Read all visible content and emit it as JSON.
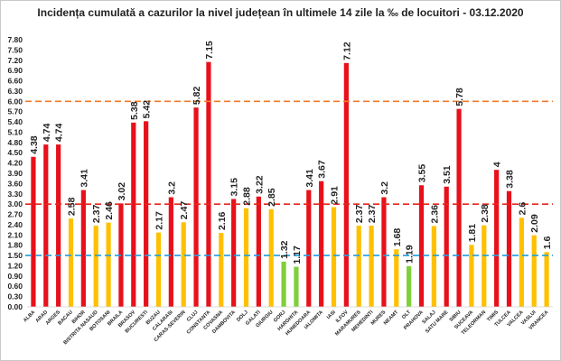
{
  "chart_data": {
    "type": "bar",
    "title": "Incidența cumulată a cazurilor la nivel județean în ultimele 14 zile la ‰ de locuitori - 03.12.2020",
    "xlabel": "",
    "ylabel": "",
    "ylim": [
      0,
      7.8
    ],
    "yticks": [
      "0.00",
      "0.30",
      "0.60",
      "0.90",
      "1.20",
      "1.50",
      "1.80",
      "2.10",
      "2.40",
      "2.70",
      "3.00",
      "3.30",
      "3.60",
      "3.90",
      "4.20",
      "4.50",
      "4.80",
      "5.10",
      "5.40",
      "5.70",
      "6.00",
      "6.30",
      "6.60",
      "6.90",
      "7.20",
      "7.50",
      "7.80"
    ],
    "grid": false,
    "legend": "none",
    "categories": [
      "ALBA",
      "ARAD",
      "ARGES",
      "BACAU",
      "BIHOR",
      "BISTRITA NASAUD",
      "BOTOSANI",
      "BRAILA",
      "BRASOV",
      "BUCURESTI",
      "BUZAU",
      "CALARASI",
      "CARAS-SEVERIN",
      "CLUJ",
      "CONSTANTA",
      "COVASNA",
      "DAMBOVITA",
      "DOLJ",
      "GALATI",
      "GIURGIU",
      "GORJ",
      "HARGHITA",
      "HUNEDOARA",
      "IALOMITA",
      "IASI",
      "ILFOV",
      "MARAMURES",
      "MEHEDINTI",
      "MURES",
      "NEAMT",
      "OLT",
      "PRAHOVA",
      "SALAJ",
      "SATU MARE",
      "SIBIU",
      "SUCEAVA",
      "TELEORMAN",
      "TIMIS",
      "TULCEA",
      "VALCEA",
      "VASLUI",
      "VRANCEA"
    ],
    "values": [
      4.38,
      4.74,
      4.74,
      2.58,
      3.41,
      2.37,
      2.46,
      3.02,
      5.38,
      5.42,
      2.17,
      3.2,
      2.47,
      5.82,
      7.15,
      2.16,
      3.15,
      2.88,
      3.22,
      2.85,
      1.32,
      1.17,
      3.41,
      3.67,
      2.91,
      7.12,
      2.37,
      2.37,
      3.2,
      1.68,
      1.19,
      3.55,
      2.36,
      3.51,
      5.78,
      1.81,
      2.38,
      4,
      3.38,
      2.6,
      2.09,
      1.6
    ],
    "value_labels": [
      "4.38",
      "4.74",
      "4.74",
      "2.58",
      "3.41",
      "2.37",
      "2.46",
      "3.02",
      "5.38",
      "5.42",
      "2.17",
      "3.2",
      "2.47",
      "5.82",
      "7.15",
      "2.16",
      "3.15",
      "2.88",
      "3.22",
      "2.85",
      "1.32",
      "1.17",
      "3.41",
      "3.67",
      "2.91",
      "7.12",
      "2.37",
      "2.37",
      "3.2",
      "1.68",
      "1.19",
      "3.55",
      "2.36",
      "3.51",
      "5.78",
      "1.81",
      "2.38",
      "4",
      "3.38",
      "2.6",
      "2.09",
      "1.6"
    ],
    "thresholds": [
      {
        "value": 1.5,
        "color": "#1f9fe0"
      },
      {
        "value": 3.0,
        "color": "#e8241c"
      },
      {
        "value": 6.0,
        "color": "#f07a2a"
      }
    ],
    "bar_colors": {
      "low": "#7fcf3a",
      "mid": "#ffc000",
      "high": "#e8101a"
    }
  }
}
